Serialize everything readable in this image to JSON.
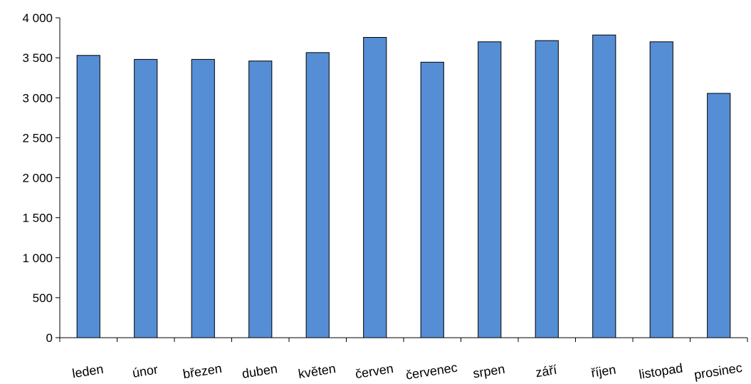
{
  "chart_data": {
    "type": "bar",
    "title": "",
    "xlabel": "",
    "ylabel": "",
    "categories": [
      "leden",
      "únor",
      "březen",
      "duben",
      "květen",
      "červen",
      "červenec",
      "srpen",
      "září",
      "říjen",
      "listopad",
      "prosinec"
    ],
    "values": [
      3530,
      3480,
      3480,
      3460,
      3565,
      3755,
      3445,
      3700,
      3715,
      3785,
      3700,
      3055
    ],
    "ylim": [
      0,
      4000
    ],
    "yticks": [
      0,
      500,
      1000,
      1500,
      2000,
      2500,
      3000,
      3500,
      4000
    ],
    "ytick_labels": [
      "0",
      "500",
      "1 000",
      "1 500",
      "2 000",
      "2 500",
      "3 000",
      "3 500",
      "4 000"
    ],
    "bar_color": "#558ED5",
    "grid": false,
    "legend": "none"
  }
}
